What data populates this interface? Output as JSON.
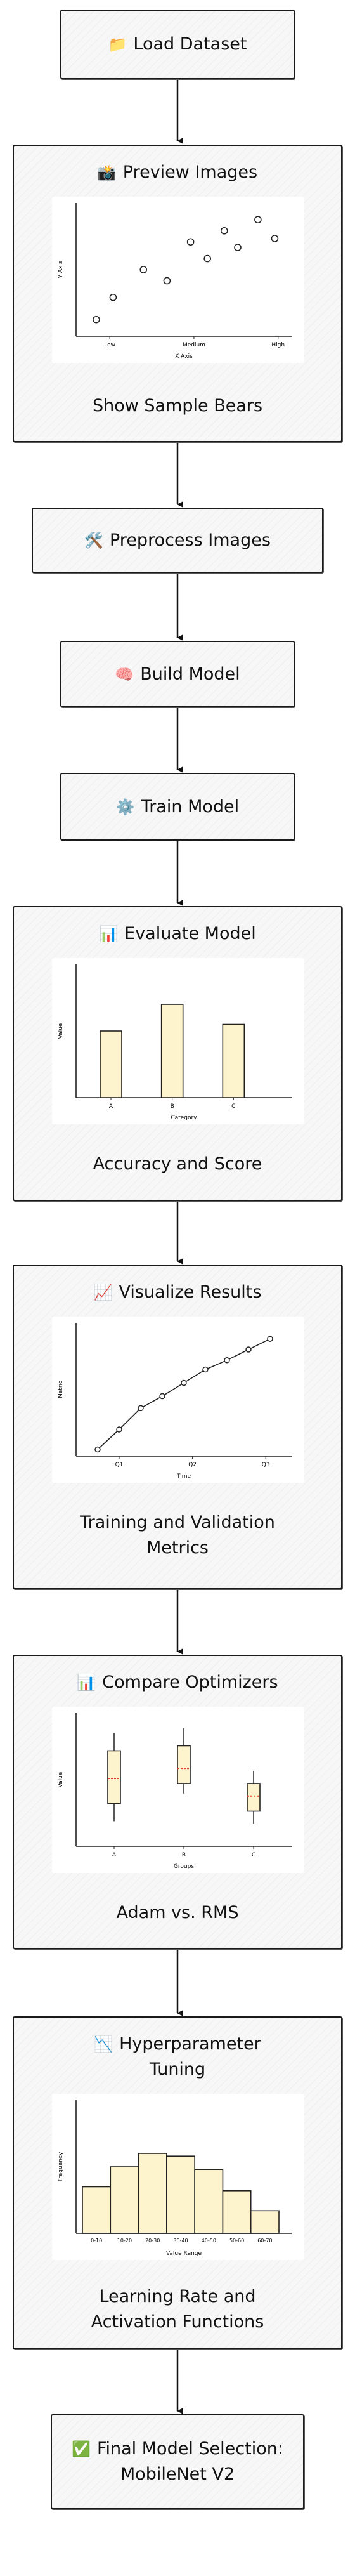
{
  "nodes": {
    "load": {
      "title": "Load Dataset",
      "icon": "folder-icon",
      "glyph": "📁"
    },
    "preview": {
      "title": "Preview Images",
      "icon": "camera-icon",
      "glyph": "📸",
      "caption": "Show Sample Bears"
    },
    "preprocess": {
      "title": "Preprocess Images",
      "icon": "tools-icon",
      "glyph": "🛠️"
    },
    "build": {
      "title": "Build Model",
      "icon": "brain-icon",
      "glyph": "🧠"
    },
    "train": {
      "title": "Train Model",
      "icon": "gear-icon",
      "glyph": "⚙️"
    },
    "evaluate": {
      "title": "Evaluate Model",
      "icon": "bar-chart-icon",
      "glyph": "📊",
      "caption": "Accuracy and Score"
    },
    "visualize": {
      "title": "Visualize Results",
      "icon": "trending-up-icon",
      "glyph": "📈",
      "caption_line1": "Training and Validation",
      "caption_line2": "Metrics"
    },
    "compare": {
      "title": "Compare Optimizers",
      "icon": "bar-chart-icon",
      "glyph": "📊",
      "caption": "Adam vs. RMS"
    },
    "tuning": {
      "title_line1": "Hyperparameter",
      "title_line2": "Tuning",
      "icon": "trending-down-icon",
      "glyph": "📉",
      "caption_line1": "Learning Rate and",
      "caption_line2": "Activation Functions"
    },
    "final": {
      "title_line1": "Final Model Selection:",
      "title_line2": "MobileNet V2",
      "icon": "check-mark-icon",
      "glyph": "✅"
    }
  },
  "chart_data": [
    {
      "type": "scatter",
      "xlabel": "X Axis",
      "ylabel": "Y Axis",
      "categories": [
        "Low",
        "Medium",
        "High"
      ],
      "points": [
        [
          0.1,
          0.15
        ],
        [
          0.35,
          0.35
        ],
        [
          0.8,
          0.6
        ],
        [
          1.15,
          0.5
        ],
        [
          1.5,
          0.85
        ],
        [
          1.75,
          0.7
        ],
        [
          2.0,
          0.95
        ],
        [
          2.2,
          0.8
        ],
        [
          2.5,
          1.05
        ],
        [
          2.75,
          0.88
        ]
      ],
      "xlim": [
        -0.2,
        3.0
      ],
      "ylim": [
        0,
        1.2
      ]
    },
    {
      "type": "bar",
      "xlabel": "Category",
      "ylabel": "Value",
      "categories": [
        "A",
        "B",
        "C"
      ],
      "values": [
        5,
        7,
        5.5
      ],
      "ylim": [
        0,
        10
      ]
    },
    {
      "type": "line",
      "xlabel": "Time",
      "ylabel": "Metric",
      "categories": [
        "Q1",
        "Q2",
        "Q3"
      ],
      "x": [
        0,
        0.5,
        1.0,
        1.5,
        2.0,
        2.5,
        3.0,
        3.5,
        4.0
      ],
      "values": [
        0.05,
        0.2,
        0.36,
        0.45,
        0.55,
        0.65,
        0.72,
        0.8,
        0.88
      ],
      "xlim": [
        -0.5,
        4.5
      ],
      "ylim": [
        0,
        1
      ],
      "markers": true
    },
    {
      "type": "box",
      "xlabel": "Groups",
      "ylabel": "Value",
      "categories": [
        "A",
        "B",
        "C"
      ],
      "boxes": [
        {
          "min": 2.5,
          "q1": 3.2,
          "median": 4.2,
          "q3": 5.3,
          "max": 6.0
        },
        {
          "min": 3.6,
          "q1": 4.0,
          "median": 4.6,
          "q3": 5.5,
          "max": 6.2
        },
        {
          "min": 2.4,
          "q1": 2.9,
          "median": 3.5,
          "q3": 4.0,
          "max": 4.5
        }
      ],
      "ylim": [
        1.5,
        6.8
      ],
      "median_color": "#e53935"
    },
    {
      "type": "bar",
      "xlabel": "Value Range",
      "ylabel": "Frequency",
      "categories": [
        "0-10",
        "10-20",
        "20-30",
        "30-40",
        "40-50",
        "50-60",
        "60-70"
      ],
      "values": [
        3.5,
        5,
        6,
        5.8,
        4.8,
        3.2,
        1.7
      ],
      "ylim": [
        0,
        10
      ]
    }
  ],
  "colors": {
    "bar_fill": "#fdf3cc",
    "stroke": "#222222",
    "box_fill": "#fdf3cc"
  }
}
